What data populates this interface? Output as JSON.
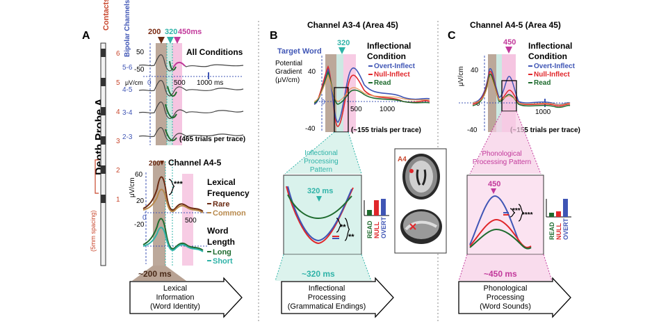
{
  "panel_a": {
    "letter": "A",
    "probe_title": "Depth Probe A",
    "contacts_label": "Contacts",
    "spacing_label": "(5mm spacing)",
    "contact_numbers": [
      "6",
      "5",
      "4",
      "3",
      "2",
      "1"
    ],
    "bipolar_label": "Bipolar Channels",
    "channels": [
      "5-6",
      "4-5",
      "3-4",
      "2-3"
    ],
    "peak_times": [
      "200",
      "320",
      "450ms"
    ],
    "all_conditions": "All Conditions",
    "axis_50": "50",
    "axis_m50": "-50",
    "unit": "μV/cm",
    "tick_0": "0",
    "tick_500": "500",
    "tick_1000": "1000 ms",
    "trials_note": "(465 trials per trace)",
    "sub_channel": "Channel A4-5",
    "sub_peak": "200",
    "axis_60": "60",
    "axis_20": "20",
    "axis_m20": "-20",
    "sub_tick_0": "0",
    "sub_tick_500": "500",
    "sig": "***",
    "lexical_title": "Lexical Frequency",
    "lexical_items": [
      "Rare",
      "Common"
    ],
    "word_title": "Word Length",
    "word_items": [
      "Long",
      "Short"
    ],
    "window_label": "~200 ms",
    "box_label": "Lexical Information (Word Identity)"
  },
  "panel_b": {
    "letter": "B",
    "title": "Channel A3-4  (Area 45)",
    "target_word": "Target Word",
    "peak": "320",
    "ylabel": "Potential Gradient (μV/cm)",
    "axis_40": "40",
    "axis_0": "0",
    "axis_m40": "-40",
    "tick_500": "500",
    "tick_1000": "1000",
    "trials_note": "(~155 trials per trace)",
    "legend_title": "Inflectional Condition",
    "legend_items": [
      "Overt-Inflect",
      "Null-Inflect",
      "Read"
    ],
    "pattern_title": "Inflectional Processing Pattern",
    "pattern_peak": "320 ms",
    "sig1": "**",
    "sig2": "**",
    "bar_labels": [
      "READ",
      "NULL",
      "OVERT"
    ],
    "window_label": "~320 ms",
    "box_label": "Inflectional Processing (Grammatical Endings)",
    "mri_label": "A4"
  },
  "panel_c": {
    "letter": "C",
    "title": "Channel A4-5  (Area 45)",
    "peak": "450",
    "unit": "μV/cm",
    "axis_40": "40",
    "axis_0": "0",
    "axis_m40": "-40",
    "tick_1000": "1000",
    "trials_note": "(~155 trials per trace)",
    "legend_title": "Inflectional Condition",
    "legend_items": [
      "Overt-Inflect",
      "Null-Inflect",
      "Read"
    ],
    "pattern_title": "Phonological Processing Pattern",
    "pattern_peak": "450",
    "sig1": "***",
    "sig2": "****",
    "bar_labels": [
      "READ",
      "NULL",
      "OVERT"
    ],
    "window_label": "~450 ms",
    "box_label": "Phonological Processing (Word Sounds)"
  },
  "colors": {
    "brown": "#8b5a3c",
    "teal": "#2fb3a8",
    "magenta": "#c2399b",
    "blue": "#3f55b5",
    "red": "#e0262a",
    "green": "#1e6b2e",
    "contact_red": "#c8462c"
  }
}
